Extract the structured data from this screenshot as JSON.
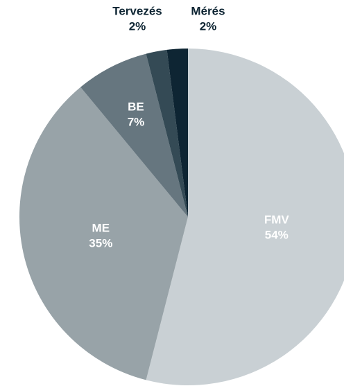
{
  "chart_data": {
    "type": "pie",
    "categories": [
      "FMV",
      "ME",
      "BE",
      "Tervezés",
      "Mérés"
    ],
    "values": [
      54,
      35,
      7,
      2,
      2
    ],
    "value_labels": [
      "54%",
      "35%",
      "7%",
      "2%",
      "2%"
    ],
    "colors": [
      "#c9d0d4",
      "#98a3a8",
      "#66767f",
      "#344a55",
      "#0e2533"
    ]
  }
}
